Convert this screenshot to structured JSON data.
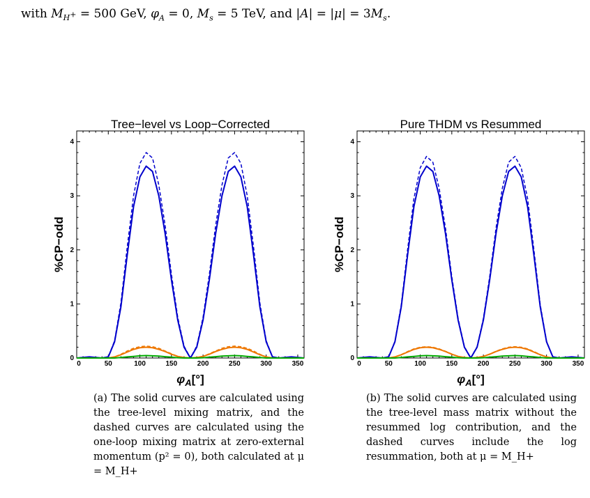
{
  "intro": {
    "prefix": "with ",
    "mass_var": "M",
    "mass_sub": "H",
    "mass_sup": "+",
    "mass_value": " = 500 GeV, ",
    "phase_var": "φ",
    "phase_sub": "A",
    "phase_value": " = 0, ",
    "ms_var": "M",
    "ms_sub": "s",
    "ms_value": " = 5 TeV, and |",
    "a_var": "A",
    "mid": "| = |",
    "mu_var": "μ",
    "end": "| = 3",
    "end_var": "M",
    "end_sub": "s",
    "end_tail": "."
  },
  "figures": [
    {
      "title": "Tree−level vs Loop−Corrected",
      "ylabel": "%CP−odd",
      "xlabel_main": "φ",
      "xlabel_sub": "A",
      "xlabel_unit": "[°]",
      "caption": "(a) The solid curves are calculated using the tree-level mixing matrix, and the dashed curves are calculated using the one-loop mixing matrix at zero-external momentum (p² = 0), both calculated at μ = M_H+"
    },
    {
      "title": "Pure THDM vs Resummed",
      "ylabel": "%CP−odd",
      "xlabel_main": "φ",
      "xlabel_sub": "A",
      "xlabel_unit": "[°]",
      "caption": "(b) The solid curves are calculated using the tree-level mass matrix without the resummed log contribution, and the dashed curves include the log resummation, both at μ = M_H+"
    }
  ],
  "chart_data": [
    {
      "type": "line",
      "title": "Tree−level vs Loop−Corrected",
      "xlabel": "φA[°]",
      "ylabel": "%CP−odd",
      "xlim": [
        0,
        360
      ],
      "ylim": [
        0,
        4.2
      ],
      "xticks": [
        "0",
        "50",
        "100",
        "150",
        "200",
        "250",
        "300",
        "350"
      ],
      "yticks": [
        "0",
        "1",
        "2",
        "3",
        "4"
      ],
      "x": [
        0,
        20,
        40,
        50,
        60,
        70,
        80,
        90,
        100,
        110,
        120,
        130,
        140,
        150,
        160,
        170,
        180,
        190,
        200,
        210,
        220,
        230,
        240,
        250,
        260,
        270,
        280,
        290,
        300,
        310,
        320,
        340,
        360
      ],
      "series": [
        {
          "color": "#0000cc",
          "style": "solid",
          "values": [
            0,
            0.02,
            0,
            0.02,
            0.3,
            0.95,
            1.9,
            2.8,
            3.35,
            3.55,
            3.45,
            3.0,
            2.3,
            1.45,
            0.7,
            0.2,
            0,
            0.2,
            0.7,
            1.45,
            2.3,
            3.0,
            3.45,
            3.55,
            3.35,
            2.8,
            1.9,
            0.95,
            0.3,
            0.02,
            0,
            0.02,
            0
          ]
        },
        {
          "color": "#0000cc",
          "style": "dashed",
          "values": [
            0,
            0.02,
            0,
            0.02,
            0.32,
            1.02,
            2.05,
            3.0,
            3.6,
            3.8,
            3.7,
            3.2,
            2.45,
            1.55,
            0.75,
            0.22,
            0,
            0.22,
            0.75,
            1.55,
            2.45,
            3.2,
            3.7,
            3.8,
            3.6,
            3.0,
            2.05,
            1.02,
            0.32,
            0.02,
            0,
            0.02,
            0
          ]
        },
        {
          "color": "#ee7700",
          "style": "solid",
          "values": [
            0,
            0,
            0,
            0,
            0.02,
            0.06,
            0.11,
            0.16,
            0.19,
            0.2,
            0.19,
            0.16,
            0.12,
            0.07,
            0.03,
            0.01,
            0,
            0.01,
            0.03,
            0.07,
            0.12,
            0.16,
            0.19,
            0.2,
            0.19,
            0.16,
            0.11,
            0.06,
            0.02,
            0,
            0,
            0,
            0
          ]
        },
        {
          "color": "#ee7700",
          "style": "dashed",
          "values": [
            0,
            0,
            0,
            0,
            0.02,
            0.07,
            0.13,
            0.18,
            0.21,
            0.22,
            0.21,
            0.18,
            0.13,
            0.08,
            0.03,
            0.01,
            0,
            0.01,
            0.03,
            0.08,
            0.13,
            0.18,
            0.21,
            0.22,
            0.21,
            0.18,
            0.13,
            0.07,
            0.02,
            0,
            0,
            0,
            0
          ]
        },
        {
          "color": "#00aa00",
          "style": "solid",
          "values": [
            0,
            0,
            0,
            0,
            0,
            0.01,
            0.02,
            0.03,
            0.04,
            0.045,
            0.04,
            0.035,
            0.025,
            0.015,
            0.005,
            0,
            0,
            0,
            0.005,
            0.015,
            0.025,
            0.035,
            0.04,
            0.045,
            0.04,
            0.03,
            0.02,
            0.01,
            0,
            0,
            0,
            0,
            0
          ]
        }
      ]
    },
    {
      "type": "line",
      "title": "Pure THDM vs Resummed",
      "xlabel": "φA[°]",
      "ylabel": "%CP−odd",
      "xlim": [
        0,
        360
      ],
      "ylim": [
        0,
        4.2
      ],
      "xticks": [
        "0",
        "50",
        "100",
        "150",
        "200",
        "250",
        "300",
        "350"
      ],
      "yticks": [
        "0",
        "1",
        "2",
        "3",
        "4"
      ],
      "x": [
        0,
        20,
        40,
        50,
        60,
        70,
        80,
        90,
        100,
        110,
        120,
        130,
        140,
        150,
        160,
        170,
        180,
        190,
        200,
        210,
        220,
        230,
        240,
        250,
        260,
        270,
        280,
        290,
        300,
        310,
        320,
        340,
        360
      ],
      "series": [
        {
          "color": "#0000cc",
          "style": "solid",
          "values": [
            0,
            0.02,
            0,
            0.02,
            0.3,
            0.95,
            1.9,
            2.8,
            3.35,
            3.55,
            3.45,
            3.0,
            2.3,
            1.45,
            0.7,
            0.2,
            0,
            0.2,
            0.7,
            1.45,
            2.3,
            3.0,
            3.45,
            3.55,
            3.35,
            2.8,
            1.9,
            0.95,
            0.3,
            0.02,
            0,
            0.02,
            0
          ]
        },
        {
          "color": "#0000cc",
          "style": "dashed",
          "values": [
            0,
            0.02,
            0,
            0.02,
            0.31,
            0.99,
            2.0,
            2.95,
            3.52,
            3.73,
            3.62,
            3.14,
            2.4,
            1.51,
            0.73,
            0.21,
            0,
            0.21,
            0.73,
            1.51,
            2.4,
            3.14,
            3.62,
            3.73,
            3.52,
            2.95,
            2.0,
            0.99,
            0.31,
            0.02,
            0,
            0.02,
            0
          ]
        },
        {
          "color": "#ee7700",
          "style": "solid",
          "values": [
            0,
            0,
            0,
            0,
            0.02,
            0.06,
            0.11,
            0.16,
            0.19,
            0.2,
            0.19,
            0.16,
            0.12,
            0.07,
            0.03,
            0.01,
            0,
            0.01,
            0.03,
            0.07,
            0.12,
            0.16,
            0.19,
            0.2,
            0.19,
            0.16,
            0.11,
            0.06,
            0.02,
            0,
            0,
            0,
            0
          ]
        },
        {
          "color": "#ee7700",
          "style": "dashed",
          "values": [
            0,
            0,
            0,
            0,
            0.02,
            0.065,
            0.12,
            0.17,
            0.2,
            0.21,
            0.2,
            0.17,
            0.125,
            0.075,
            0.03,
            0.01,
            0,
            0.01,
            0.03,
            0.075,
            0.125,
            0.17,
            0.2,
            0.21,
            0.2,
            0.17,
            0.12,
            0.065,
            0.02,
            0,
            0,
            0,
            0
          ]
        },
        {
          "color": "#00aa00",
          "style": "solid",
          "values": [
            0,
            0,
            0,
            0,
            0,
            0.01,
            0.02,
            0.03,
            0.04,
            0.045,
            0.04,
            0.035,
            0.025,
            0.015,
            0.005,
            0,
            0,
            0,
            0.005,
            0.015,
            0.025,
            0.035,
            0.04,
            0.045,
            0.04,
            0.03,
            0.02,
            0.01,
            0,
            0,
            0,
            0,
            0
          ]
        }
      ]
    }
  ]
}
